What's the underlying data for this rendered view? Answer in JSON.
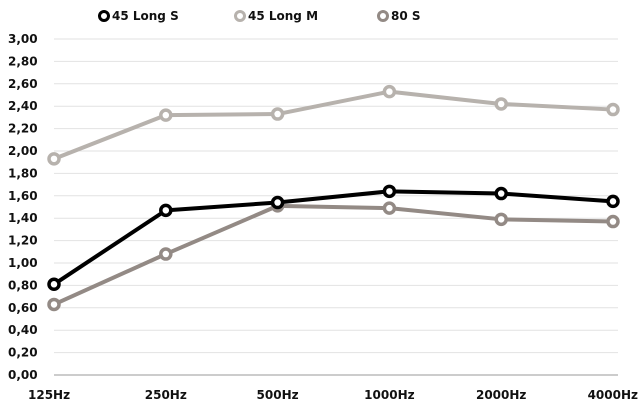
{
  "chart_data": {
    "type": "line",
    "categories": [
      "125Hz",
      "250Hz",
      "500Hz",
      "1000Hz",
      "2000Hz",
      "4000Hz"
    ],
    "series": [
      {
        "name": "45 Long S",
        "color": "#000000",
        "values": [
          0.81,
          1.47,
          1.54,
          1.64,
          1.62,
          1.55
        ]
      },
      {
        "name": "45 Long M",
        "color": "#b7b2ad",
        "values": [
          1.93,
          2.32,
          2.33,
          2.53,
          2.42,
          2.37
        ]
      },
      {
        "name": "80 S",
        "color": "#938a85",
        "values": [
          0.63,
          1.08,
          1.51,
          1.49,
          1.39,
          1.37
        ]
      }
    ],
    "yticks": [
      "0,00",
      "0,20",
      "0,40",
      "0,60",
      "0,80",
      "1,00",
      "1,20",
      "1,40",
      "1,60",
      "1,80",
      "2,00",
      "2,20",
      "2,40",
      "2,60",
      "2,80",
      "3,00"
    ],
    "ylim": [
      0,
      3
    ],
    "grid": true,
    "legend_position": "top-left"
  }
}
